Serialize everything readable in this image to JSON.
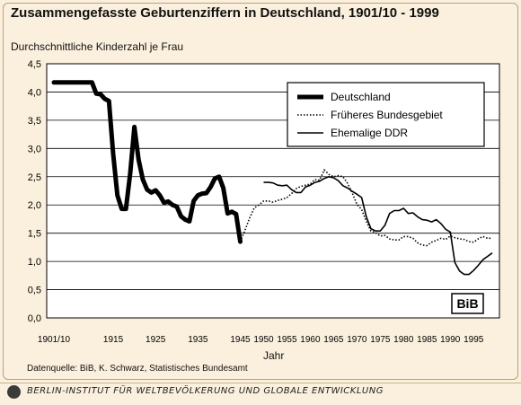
{
  "title": "Zusammengefasste Geburtenziffern in Deutschland, 1901/10 - 1999",
  "ylabel": "Durchschnittliche Kinderzahl je Frau",
  "xlabel": "Jahr",
  "source": "Datenquelle: BiB, K. Schwarz, Statistisches Bundesamt",
  "footer": "BERLIN-INSTITUT FÜR WELTBEVÖLKERUNG UND GLOBALE ENTWICKLUNG",
  "badge": "BiB",
  "colors": {
    "background": "#fbf0dd",
    "plot_background": "#ffffff",
    "lines": "#000000"
  },
  "chart_data": {
    "type": "line",
    "ylim": [
      0,
      4.5
    ],
    "xlim": [
      1901,
      1999
    ],
    "grid": true,
    "legend_placement": "top-right",
    "y_ticks": [
      "0,0",
      "0,5",
      "1,0",
      "1,5",
      "2,0",
      "2,5",
      "3,0",
      "3,5",
      "4,0",
      "4,5"
    ],
    "x_ticks": [
      {
        "label": "1901/10",
        "x": 1901
      },
      {
        "label": "1915",
        "x": 1915
      },
      {
        "label": "1925",
        "x": 1925
      },
      {
        "label": "1935",
        "x": 1935
      },
      {
        "label": "1945",
        "x": 1945
      },
      {
        "label": "1950",
        "x": 1950
      },
      {
        "label": "1955",
        "x": 1955
      },
      {
        "label": "1960",
        "x": 1960
      },
      {
        "label": "1965",
        "x": 1965
      },
      {
        "label": "1970",
        "x": 1970
      },
      {
        "label": "1975",
        "x": 1975
      },
      {
        "label": "1980",
        "x": 1980
      },
      {
        "label": "1985",
        "x": 1985
      },
      {
        "label": "1990",
        "x": 1990
      },
      {
        "label": "1995",
        "x": 1995
      }
    ],
    "series": [
      {
        "name": "Deutschland",
        "style": "thick",
        "points": [
          [
            1901,
            4.17
          ],
          [
            1910,
            4.17
          ],
          [
            1911,
            3.97
          ],
          [
            1912,
            3.96
          ],
          [
            1913,
            3.88
          ],
          [
            1914,
            3.84
          ],
          [
            1915,
            2.9
          ],
          [
            1916,
            2.17
          ],
          [
            1917,
            1.93
          ],
          [
            1918,
            1.93
          ],
          [
            1919,
            2.55
          ],
          [
            1920,
            3.38
          ],
          [
            1921,
            2.8
          ],
          [
            1922,
            2.45
          ],
          [
            1923,
            2.27
          ],
          [
            1924,
            2.22
          ],
          [
            1925,
            2.26
          ],
          [
            1926,
            2.17
          ],
          [
            1927,
            2.04
          ],
          [
            1928,
            2.06
          ],
          [
            1929,
            2.0
          ],
          [
            1930,
            1.97
          ],
          [
            1931,
            1.8
          ],
          [
            1932,
            1.74
          ],
          [
            1933,
            1.71
          ],
          [
            1934,
            2.07
          ],
          [
            1935,
            2.17
          ],
          [
            1936,
            2.2
          ],
          [
            1937,
            2.21
          ],
          [
            1938,
            2.32
          ],
          [
            1939,
            2.47
          ],
          [
            1940,
            2.5
          ],
          [
            1941,
            2.3
          ],
          [
            1942,
            1.85
          ],
          [
            1943,
            1.88
          ],
          [
            1944,
            1.84
          ],
          [
            1945,
            1.35
          ]
        ]
      },
      {
        "name": "Früheres Bundesgebiet",
        "style": "dotted",
        "points": [
          [
            1945,
            1.35
          ],
          [
            1946,
            1.55
          ],
          [
            1947,
            1.77
          ],
          [
            1948,
            1.95
          ],
          [
            1949,
            2.0
          ],
          [
            1950,
            2.07
          ],
          [
            1951,
            2.07
          ],
          [
            1952,
            2.05
          ],
          [
            1953,
            2.08
          ],
          [
            1954,
            2.1
          ],
          [
            1955,
            2.13
          ],
          [
            1956,
            2.2
          ],
          [
            1957,
            2.29
          ],
          [
            1958,
            2.33
          ],
          [
            1959,
            2.35
          ],
          [
            1960,
            2.37
          ],
          [
            1961,
            2.45
          ],
          [
            1962,
            2.44
          ],
          [
            1963,
            2.62
          ],
          [
            1964,
            2.54
          ],
          [
            1965,
            2.5
          ],
          [
            1966,
            2.52
          ],
          [
            1967,
            2.5
          ],
          [
            1968,
            2.38
          ],
          [
            1969,
            2.21
          ],
          [
            1970,
            2.01
          ],
          [
            1971,
            1.92
          ],
          [
            1972,
            1.71
          ],
          [
            1973,
            1.54
          ],
          [
            1974,
            1.51
          ],
          [
            1975,
            1.45
          ],
          [
            1976,
            1.46
          ],
          [
            1977,
            1.4
          ],
          [
            1978,
            1.38
          ],
          [
            1979,
            1.38
          ],
          [
            1980,
            1.44
          ],
          [
            1981,
            1.44
          ],
          [
            1982,
            1.41
          ],
          [
            1983,
            1.33
          ],
          [
            1984,
            1.29
          ],
          [
            1985,
            1.28
          ],
          [
            1986,
            1.34
          ],
          [
            1987,
            1.37
          ],
          [
            1988,
            1.41
          ],
          [
            1989,
            1.39
          ],
          [
            1990,
            1.45
          ],
          [
            1991,
            1.42
          ],
          [
            1992,
            1.4
          ],
          [
            1993,
            1.39
          ],
          [
            1994,
            1.35
          ],
          [
            1995,
            1.34
          ],
          [
            1996,
            1.4
          ],
          [
            1997,
            1.44
          ],
          [
            1998,
            1.41
          ],
          [
            1999,
            1.41
          ]
        ]
      },
      {
        "name": "Ehemalige DDR",
        "style": "solid",
        "points": [
          [
            1950,
            2.4
          ],
          [
            1951,
            2.4
          ],
          [
            1952,
            2.39
          ],
          [
            1953,
            2.35
          ],
          [
            1954,
            2.34
          ],
          [
            1955,
            2.35
          ],
          [
            1956,
            2.27
          ],
          [
            1957,
            2.22
          ],
          [
            1958,
            2.22
          ],
          [
            1959,
            2.32
          ],
          [
            1960,
            2.35
          ],
          [
            1961,
            2.4
          ],
          [
            1962,
            2.42
          ],
          [
            1963,
            2.47
          ],
          [
            1964,
            2.5
          ],
          [
            1965,
            2.48
          ],
          [
            1966,
            2.43
          ],
          [
            1967,
            2.34
          ],
          [
            1968,
            2.3
          ],
          [
            1969,
            2.24
          ],
          [
            1970,
            2.19
          ],
          [
            1971,
            2.13
          ],
          [
            1972,
            1.79
          ],
          [
            1973,
            1.58
          ],
          [
            1974,
            1.54
          ],
          [
            1975,
            1.54
          ],
          [
            1976,
            1.64
          ],
          [
            1977,
            1.85
          ],
          [
            1978,
            1.9
          ],
          [
            1979,
            1.9
          ],
          [
            1980,
            1.94
          ],
          [
            1981,
            1.85
          ],
          [
            1982,
            1.86
          ],
          [
            1983,
            1.79
          ],
          [
            1984,
            1.74
          ],
          [
            1985,
            1.73
          ],
          [
            1986,
            1.7
          ],
          [
            1987,
            1.74
          ],
          [
            1988,
            1.67
          ],
          [
            1989,
            1.57
          ],
          [
            1990,
            1.52
          ],
          [
            1991,
            0.98
          ],
          [
            1992,
            0.83
          ],
          [
            1993,
            0.77
          ],
          [
            1994,
            0.77
          ],
          [
            1995,
            0.84
          ],
          [
            1996,
            0.93
          ],
          [
            1997,
            1.03
          ],
          [
            1998,
            1.09
          ],
          [
            1999,
            1.15
          ]
        ]
      }
    ]
  }
}
